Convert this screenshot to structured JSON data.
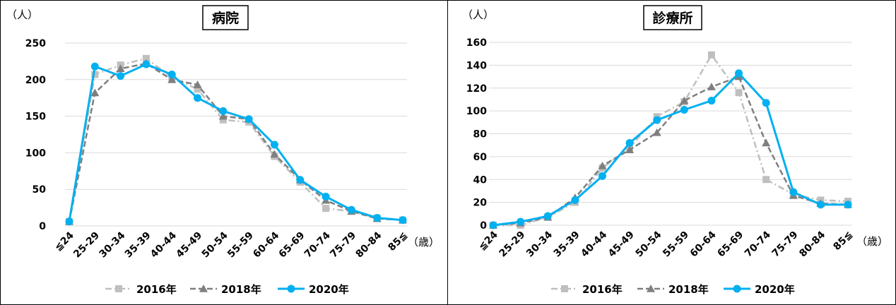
{
  "chart_data": [
    {
      "type": "line",
      "title": "病院",
      "ylabel": "（人）",
      "xlabel": "（歳）",
      "ylim": [
        0,
        250
      ],
      "yticks": [
        0,
        50,
        100,
        150,
        200,
        250
      ],
      "grid": true,
      "legend": "bottom",
      "categories": [
        "≦24",
        "25-29",
        "30-34",
        "35-39",
        "40-44",
        "45-49",
        "50-54",
        "55-59",
        "60-64",
        "65-69",
        "70-74",
        "75-79",
        "80-84",
        "85≦"
      ],
      "series": [
        {
          "name": "2016年",
          "color": "#bfbfbf",
          "marker": "square",
          "dash": "dashdot",
          "values": [
            6,
            207,
            220,
            229,
            203,
            187,
            145,
            142,
            95,
            60,
            24,
            20,
            11,
            8
          ]
        },
        {
          "name": "2018年",
          "color": "#7f7f7f",
          "marker": "triangle",
          "dash": "dash",
          "values": [
            6,
            182,
            215,
            222,
            200,
            193,
            150,
            146,
            98,
            63,
            35,
            20,
            10,
            8
          ]
        },
        {
          "name": "2020年",
          "color": "#00b0f0",
          "marker": "circle",
          "dash": "solid",
          "values": [
            6,
            218,
            205,
            221,
            207,
            175,
            157,
            146,
            111,
            63,
            40,
            22,
            11,
            8
          ]
        }
      ]
    },
    {
      "type": "line",
      "title": "診療所",
      "ylabel": "（人）",
      "xlabel": "（歳）",
      "ylim": [
        0,
        160
      ],
      "yticks": [
        0,
        20,
        40,
        60,
        80,
        100,
        120,
        140,
        160
      ],
      "grid": true,
      "legend": "bottom",
      "categories": [
        "≦24",
        "25-29",
        "30-34",
        "35-39",
        "40-44",
        "45-49",
        "50-54",
        "55-59",
        "60-64",
        "65-69",
        "70-74",
        "75-79",
        "80-84",
        "85≦"
      ],
      "series": [
        {
          "name": "2016年",
          "color": "#bfbfbf",
          "marker": "square",
          "dash": "dashdot",
          "values": [
            0,
            0,
            7,
            20,
            50,
            68,
            95,
            108,
            149,
            116,
            40,
            27,
            22,
            21
          ]
        },
        {
          "name": "2018年",
          "color": "#7f7f7f",
          "marker": "triangle",
          "dash": "dash",
          "values": [
            0,
            2,
            7,
            24,
            52,
            66,
            81,
            109,
            121,
            130,
            72,
            26,
            19,
            18
          ]
        },
        {
          "name": "2020年",
          "color": "#00b0f0",
          "marker": "circle",
          "dash": "solid",
          "values": [
            0,
            3,
            8,
            22,
            43,
            72,
            92,
            101,
            109,
            133,
            107,
            29,
            18,
            18
          ]
        }
      ]
    }
  ]
}
